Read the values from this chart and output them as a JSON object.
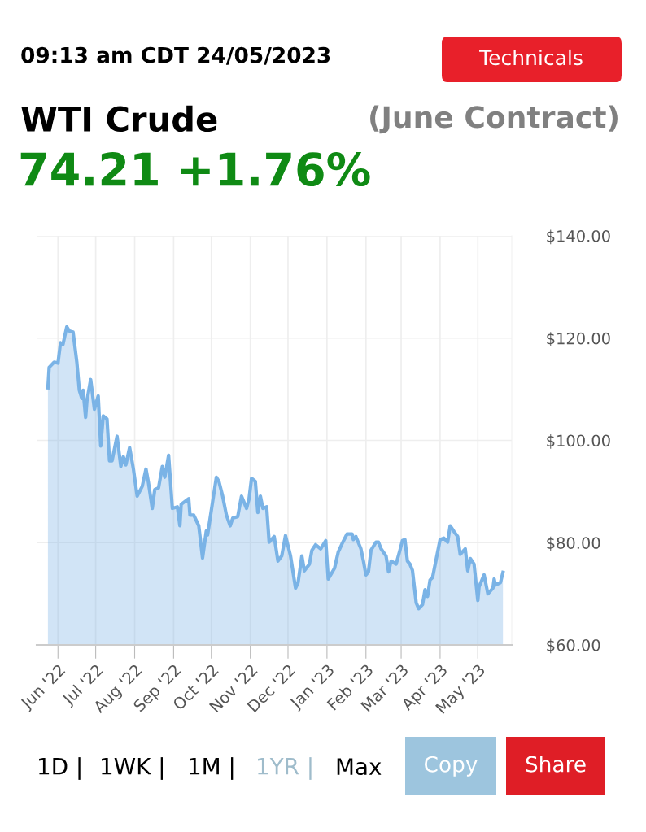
{
  "chart_data": {
    "type": "area",
    "title": "WTI Crude",
    "subtitle": "(June Contract)",
    "annotations": [
      "09:13 am CDT 24/05/2023",
      "74.21 +1.76%",
      "Technicals",
      "1D |",
      "1WK |",
      "1M |",
      "1YR |",
      "Max",
      "Copy",
      "Share"
    ],
    "x": [
      "2022-05-24",
      "2022-05-25",
      "2022-05-29",
      "2022-06-01",
      "2022-06-03",
      "2022-06-05",
      "2022-06-08",
      "2022-06-10",
      "2022-06-13",
      "2022-06-16",
      "2022-06-18",
      "2022-06-20",
      "2022-06-21",
      "2022-06-23",
      "2022-06-24",
      "2022-06-27",
      "2022-06-30",
      "2022-07-03",
      "2022-07-05",
      "2022-07-07",
      "2022-07-10",
      "2022-07-12",
      "2022-07-14",
      "2022-07-18",
      "2022-07-21",
      "2022-07-23",
      "2022-07-25",
      "2022-07-28",
      "2022-07-31",
      "2022-08-03",
      "2022-08-07",
      "2022-08-10",
      "2022-08-12",
      "2022-08-15",
      "2022-08-17",
      "2022-08-20",
      "2022-08-23",
      "2022-08-25",
      "2022-08-28",
      "2022-08-31",
      "2022-09-04",
      "2022-09-06",
      "2022-09-07",
      "2022-09-13",
      "2022-09-14",
      "2022-09-17",
      "2022-09-21",
      "2022-09-24",
      "2022-09-27",
      "2022-09-28",
      "2022-10-05",
      "2022-10-07",
      "2022-10-10",
      "2022-10-13",
      "2022-10-16",
      "2022-10-18",
      "2022-10-22",
      "2022-10-25",
      "2022-10-29",
      "2022-10-31",
      "2022-11-02",
      "2022-11-05",
      "2022-11-07",
      "2022-11-09",
      "2022-11-11",
      "2022-11-14",
      "2022-11-16",
      "2022-11-20",
      "2022-11-23",
      "2022-11-26",
      "2022-11-29",
      "2022-12-03",
      "2022-12-07",
      "2022-12-09",
      "2022-12-12",
      "2022-12-14",
      "2022-12-18",
      "2022-12-20",
      "2022-12-23",
      "2022-12-27",
      "2022-12-31",
      "2023-01-02",
      "2023-01-07",
      "2023-01-10",
      "2023-01-13",
      "2023-01-17",
      "2023-01-21",
      "2023-01-22",
      "2023-01-24",
      "2023-01-28",
      "2023-01-30",
      "2023-02-01",
      "2023-02-03",
      "2023-02-05",
      "2023-02-09",
      "2023-02-11",
      "2023-02-13",
      "2023-02-17",
      "2023-02-19",
      "2023-02-21",
      "2023-02-25",
      "2023-02-28",
      "2023-03-02",
      "2023-03-04",
      "2023-03-06",
      "2023-03-08",
      "2023-03-10",
      "2023-03-13",
      "2023-03-15",
      "2023-03-18",
      "2023-03-20",
      "2023-03-22",
      "2023-03-24",
      "2023-03-26",
      "2023-04-01",
      "2023-04-04",
      "2023-04-07",
      "2023-04-09",
      "2023-04-12",
      "2023-04-15",
      "2023-04-17",
      "2023-04-21",
      "2023-04-23",
      "2023-04-25",
      "2023-04-28",
      "2023-05-01",
      "2023-05-02",
      "2023-05-06",
      "2023-05-09",
      "2023-05-13",
      "2023-05-14",
      "2023-05-15",
      "2023-05-19",
      "2023-05-21"
    ],
    "series": [
      {
        "color": "#7ab3e6",
        "values": [
          110.3,
          114.3,
          115.3,
          115.1,
          119.1,
          118.8,
          122.2,
          121.4,
          121.2,
          115.3,
          109.8,
          108.2,
          109.8,
          104.5,
          107.7,
          111.9,
          106.1,
          108.7,
          98.9,
          104.8,
          104.2,
          96.0,
          96.0,
          100.8,
          94.9,
          96.8,
          95.2,
          98.6,
          94.4,
          89.1,
          91.0,
          94.4,
          91.7,
          86.7,
          90.4,
          90.7,
          94.9,
          92.8,
          97.1,
          86.7,
          87.0,
          83.3,
          87.5,
          88.6,
          85.4,
          85.4,
          83.3,
          77.0,
          82.3,
          81.5,
          92.8,
          92.0,
          89.1,
          85.4,
          83.3,
          84.8,
          85.1,
          89.1,
          86.7,
          88.6,
          92.6,
          92.0,
          85.9,
          89.1,
          86.7,
          87.0,
          80.1,
          81.2,
          76.4,
          77.4,
          81.4,
          77.4,
          71.1,
          72.2,
          77.4,
          74.5,
          75.8,
          78.5,
          79.6,
          78.8,
          80.4,
          72.9,
          75.0,
          78.2,
          79.8,
          81.7,
          81.7,
          80.6,
          81.2,
          78.8,
          76.4,
          73.7,
          74.3,
          78.5,
          80.1,
          80.1,
          78.8,
          77.4,
          74.3,
          76.4,
          75.8,
          78.5,
          80.4,
          80.6,
          76.4,
          75.8,
          74.6,
          68.2,
          67.1,
          67.9,
          70.8,
          69.5,
          72.7,
          73.2,
          80.6,
          80.9,
          80.1,
          83.3,
          82.2,
          81.2,
          77.7,
          78.8,
          74.5,
          76.9,
          75.8,
          68.7,
          71.4,
          73.7,
          70.0,
          71.1,
          72.9,
          71.7,
          72.2,
          74.2
        ]
      }
    ],
    "xlim": [
      "2022-05-15",
      "2023-05-28"
    ],
    "xticks": [
      {
        "value": "2022-06-01",
        "label": "Jun '22"
      },
      {
        "value": "2022-07-01",
        "label": "Jul '22"
      },
      {
        "value": "2022-08-01",
        "label": "Aug '22"
      },
      {
        "value": "2022-09-01",
        "label": "Sep '22"
      },
      {
        "value": "2022-10-01",
        "label": "Oct '22"
      },
      {
        "value": "2022-11-01",
        "label": "Nov '22"
      },
      {
        "value": "2022-12-01",
        "label": "Dec '22"
      },
      {
        "value": "2023-01-01",
        "label": "Jan '23"
      },
      {
        "value": "2023-02-01",
        "label": "Feb '23"
      },
      {
        "value": "2023-03-01",
        "label": "Mar '23"
      },
      {
        "value": "2023-04-01",
        "label": "Apr '23"
      },
      {
        "value": "2023-05-01",
        "label": "May '23"
      }
    ],
    "ylim": [
      60,
      140
    ],
    "yticks": [
      {
        "value": 60,
        "label": "$60.00"
      },
      {
        "value": 80,
        "label": "$80.00"
      },
      {
        "value": 100,
        "label": "$100.00"
      },
      {
        "value": 120,
        "label": "$120.00"
      },
      {
        "value": 140,
        "label": "$140.00"
      }
    ],
    "grid": true,
    "marker": "none",
    "line_style": "solid"
  }
}
